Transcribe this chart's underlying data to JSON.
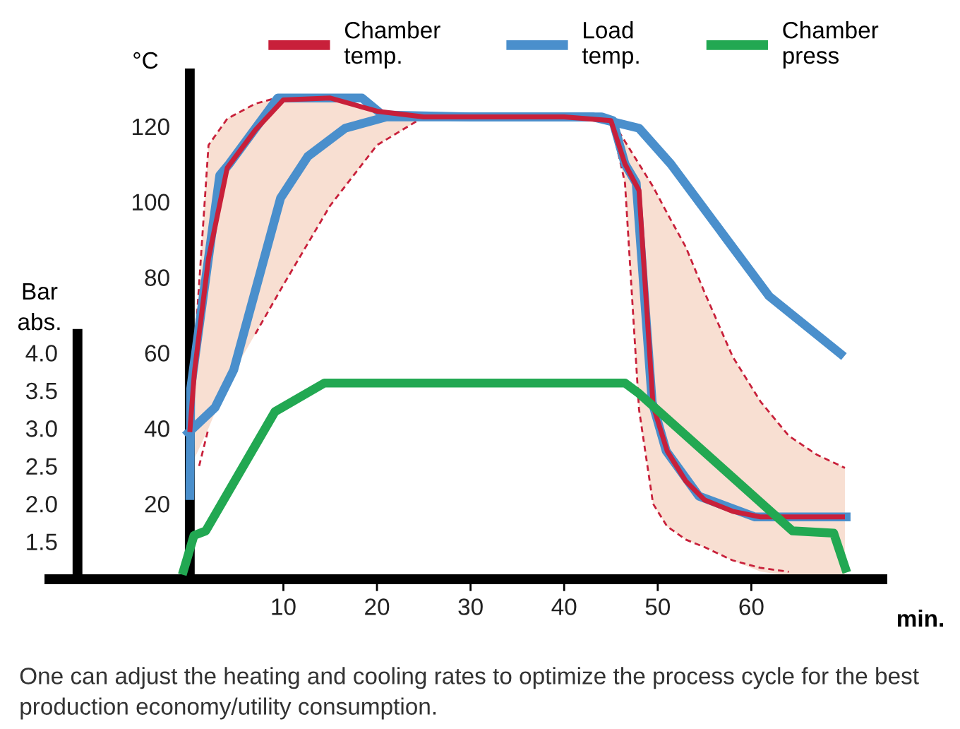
{
  "chart_data": {
    "type": "line",
    "xlabel": "min.",
    "ylabel": "°C",
    "y2label": "Bar\nabs.",
    "xlim": [
      -15,
      74
    ],
    "xticks": [
      10,
      20,
      30,
      40,
      50,
      60
    ],
    "ylim": [
      0,
      134
    ],
    "yticks": [
      20,
      40,
      60,
      80,
      100,
      120
    ],
    "y2lim": [
      1,
      7.7
    ],
    "y2ticks": [
      1.5,
      {
        "value": 2,
        "label": "2.0"
      },
      2.5,
      {
        "value": 3,
        "label": "3.0"
      },
      3.5,
      {
        "value": 4,
        "label": "4.0"
      }
    ],
    "legend": "top",
    "grid": false,
    "series": [
      {
        "name": "Load\ntemp.",
        "color": "#4a8fcc",
        "x": [
          0,
          0.1,
          3.2,
          4.2,
          9.4,
          18.4,
          20.6,
          30,
          44,
          45.2,
          46.5,
          47.7,
          49.4,
          50.9,
          54.4,
          60.4,
          70.6
        ],
        "values": [
          21,
          50.5,
          107,
          110,
          127.5,
          127.5,
          123,
          122.5,
          122.5,
          121.5,
          110,
          105,
          47,
          34,
          22,
          16.5,
          16.5
        ]
      },
      {
        "color": "#4a8fcc",
        "x": [
          -0.5,
          2.7,
          4.7,
          9.7,
          12.6,
          16.6,
          21,
          30,
          43,
          48,
          51.4,
          61.9,
          69.9
        ],
        "values": [
          38,
          45.5,
          55.5,
          101,
          112,
          119.5,
          122.5,
          122.5,
          122.5,
          119.5,
          110,
          75,
          59
        ]
      },
      {
        "name": "Chamber\ntemp.",
        "color": "#c8203a",
        "x": [
          0,
          0.5,
          2,
          4,
          7,
          10,
          15,
          20,
          25,
          30,
          40,
          45,
          46.5,
          48,
          49.5,
          51,
          53,
          55,
          58,
          61,
          64,
          67,
          70
        ],
        "values": [
          39,
          55,
          85,
          109,
          119,
          127,
          127.5,
          124,
          122.5,
          122.5,
          122.5,
          121.5,
          110,
          103,
          46,
          34,
          26,
          21,
          18,
          16.5,
          16.5,
          16.5,
          16.5
        ],
        "upper": [
          39,
          60,
          115,
          122,
          126,
          128,
          128,
          124,
          123,
          123,
          123,
          122,
          116,
          110,
          104,
          97,
          88,
          76,
          59,
          47,
          38,
          33,
          29.5
        ],
        "lower": [
          30,
          32,
          40,
          52,
          65,
          78,
          99,
          115,
          122.5,
          122.5,
          122.5,
          121.5,
          105,
          45,
          20,
          14,
          10.5,
          8.5,
          5,
          2,
          1,
          1,
          1
        ]
      },
      {
        "color": "#c8203a",
        "line_style": "dashed",
        "x": [
          0,
          0.5,
          2,
          4,
          7,
          10,
          15,
          20,
          25,
          30,
          40,
          45,
          46.5,
          48,
          49.5,
          51,
          53,
          55,
          58,
          61,
          64,
          67,
          70
        ],
        "values": [
          39,
          60,
          115,
          122,
          126,
          128,
          128,
          124,
          123,
          123,
          123,
          122,
          116,
          110,
          104,
          97,
          88,
          76,
          59,
          47,
          38,
          33,
          29.5
        ]
      },
      {
        "color": "#c8203a",
        "line_style": "dashed",
        "x": [
          1,
          2,
          4,
          7,
          10,
          15,
          20,
          25,
          30,
          40,
          45,
          46.5,
          48,
          49.5,
          51,
          53,
          55,
          58,
          61,
          64
        ],
        "values": [
          30,
          40,
          null,
          65,
          78,
          99,
          115,
          122.5,
          122.5,
          122.5,
          121.5,
          105,
          45,
          20,
          14,
          10.5,
          8.5,
          5,
          3,
          2
        ]
      },
      {
        "name": "Chamber\npress",
        "color": "#22a852",
        "axis": "y2",
        "x": [
          -0.8,
          0.45,
          1.7,
          9.1,
          14.4,
          46.5,
          48,
          64.4,
          68.8,
          70.2
        ],
        "values": [
          1.06,
          1.58,
          1.64,
          3.22,
          3.6,
          3.6,
          3.46,
          1.64,
          1.61,
          1.09
        ]
      }
    ],
    "annotations": [
      "One can adjust the heating and cooling rates to optimize the process cycle for the best production economy/utility consumption."
    ]
  }
}
